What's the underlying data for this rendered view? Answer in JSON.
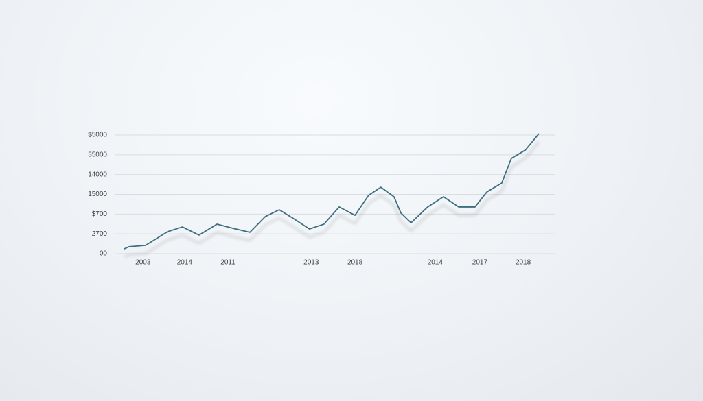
{
  "chart_data": {
    "type": "line",
    "x": [
      1.7,
      2.8,
      6.6,
      11.6,
      15.0,
      18.8,
      22.9,
      26.6,
      30.4,
      33.9,
      37.1,
      40.4,
      44.0,
      47.3,
      50.8,
      54.4,
      57.5,
      60.3,
      63.3,
      64.9,
      67.2,
      71.0,
      74.6,
      78.1,
      81.8,
      84.5,
      87.9,
      90.1,
      93.3,
      96.4
    ],
    "series": [
      {
        "color": "#3d6e80",
        "values": [
          0.24,
          0.35,
          0.42,
          1.11,
          1.35,
          0.94,
          1.49,
          1.28,
          1.08,
          1.87,
          2.22,
          1.77,
          1.25,
          1.49,
          2.36,
          1.94,
          2.95,
          3.36,
          2.88,
          2.05,
          1.56,
          2.36,
          2.88,
          2.36,
          2.36,
          3.12,
          3.57,
          4.82,
          5.24,
          6.07
        ]
      }
    ],
    "xlim": [
      0,
      100
    ],
    "xticks": [
      {
        "value": 6.0,
        "label": "2003"
      },
      {
        "value": 15.5,
        "label": "2014"
      },
      {
        "value": 25.4,
        "label": "2011"
      },
      {
        "value": 44.4,
        "label": "2013"
      },
      {
        "value": 54.4,
        "label": "2018"
      },
      {
        "value": 72.7,
        "label": "2014"
      },
      {
        "value": 82.9,
        "label": "2017"
      },
      {
        "value": 92.8,
        "label": "2018"
      }
    ],
    "ylim": [
      0,
      6.1
    ],
    "yticks": [
      {
        "value": 0,
        "label": "00"
      },
      {
        "value": 1,
        "label": "2700"
      },
      {
        "value": 2,
        "label": "$700"
      },
      {
        "value": 3,
        "label": "15000"
      },
      {
        "value": 4,
        "label": "14000"
      },
      {
        "value": 5,
        "label": "35000"
      },
      {
        "value": 6,
        "label": "$5000"
      }
    ],
    "grid": true
  }
}
